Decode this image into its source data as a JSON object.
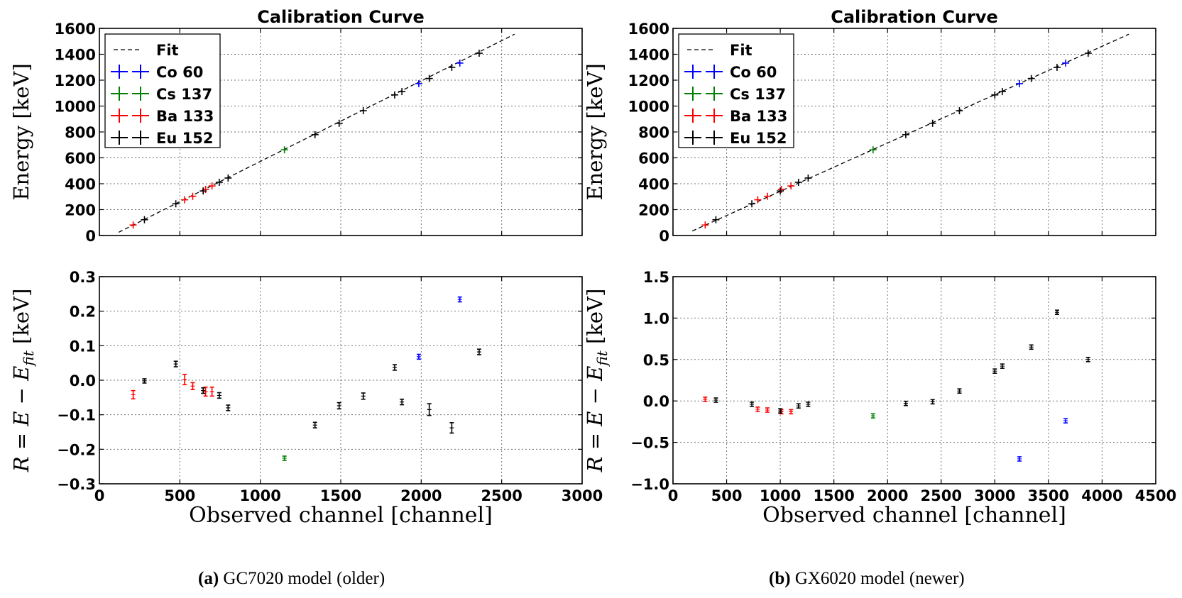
{
  "chart_data": [
    {
      "panel": "a-top",
      "type": "scatter",
      "title": "Calibration Curve",
      "xlabel": "",
      "ylabel": "Energy [keV]",
      "xlim": [
        0,
        3000
      ],
      "ylim": [
        0,
        1600
      ],
      "xticks": [],
      "yticks": [
        "0",
        "200",
        "400",
        "600",
        "800",
        "1000",
        "1200",
        "1400",
        "1600"
      ],
      "grid": true,
      "legend_position": "top-left",
      "legend": [
        "Fit",
        "Co 60",
        "Cs 137",
        "Ba 133",
        "Eu 152"
      ],
      "fit": {
        "name": "Fit",
        "x": [
          120,
          2580
        ],
        "y": [
          25,
          1555
        ]
      },
      "series": [
        {
          "name": "Co 60",
          "color": "#0000ff",
          "points": [
            [
              1985,
              1173
            ],
            [
              2240,
              1332
            ]
          ]
        },
        {
          "name": "Cs 137",
          "color": "#008000",
          "points": [
            [
              1150,
              662
            ]
          ]
        },
        {
          "name": "Ba 133",
          "color": "#ff0000",
          "points": [
            [
              210,
              81
            ],
            [
              530,
              276
            ],
            [
              580,
              303
            ],
            [
              660,
              356
            ],
            [
              700,
              383
            ]
          ]
        },
        {
          "name": "Eu 152",
          "color": "#000000",
          "points": [
            [
              280,
              122
            ],
            [
              475,
              245
            ],
            [
              645,
              344
            ],
            [
              745,
              411
            ],
            [
              800,
              444
            ],
            [
              1340,
              779
            ],
            [
              1490,
              867
            ],
            [
              1640,
              964
            ],
            [
              1835,
              1086
            ],
            [
              1880,
              1112
            ],
            [
              2050,
              1213
            ],
            [
              2190,
              1299
            ],
            [
              2360,
              1408
            ]
          ]
        }
      ]
    },
    {
      "panel": "a-bottom",
      "type": "scatter",
      "title": "",
      "xlabel": "Observed channel [channel]",
      "ylabel": "R = E − E_fit [keV]",
      "xlim": [
        0,
        3000
      ],
      "ylim": [
        -0.3,
        0.3
      ],
      "xticks": [
        "0",
        "500",
        "1000",
        "1500",
        "2000",
        "2500",
        "3000"
      ],
      "yticks": [
        "−0.3",
        "−0.2",
        "−0.1",
        "0.0",
        "0.1",
        "0.2",
        "0.3"
      ],
      "grid": true,
      "series": [
        {
          "name": "Co 60",
          "color": "#0000ff",
          "points": [
            [
              1985,
              0.068,
              0.007
            ],
            [
              2240,
              0.234,
              0.007
            ]
          ]
        },
        {
          "name": "Cs 137",
          "color": "#008000",
          "points": [
            [
              1150,
              -0.226,
              0.006
            ]
          ]
        },
        {
          "name": "Ba 133",
          "color": "#ff0000",
          "points": [
            [
              210,
              -0.042,
              0.012
            ],
            [
              530,
              0.002,
              0.015
            ],
            [
              580,
              -0.017,
              0.01
            ],
            [
              660,
              -0.033,
              0.013
            ],
            [
              700,
              -0.033,
              0.013
            ]
          ]
        },
        {
          "name": "Eu 152",
          "color": "#000000",
          "points": [
            [
              280,
              -0.002,
              0.006
            ],
            [
              475,
              0.047,
              0.008
            ],
            [
              645,
              -0.03,
              0.008
            ],
            [
              745,
              -0.044,
              0.008
            ],
            [
              800,
              -0.08,
              0.008
            ],
            [
              1340,
              -0.13,
              0.008
            ],
            [
              1490,
              -0.074,
              0.009
            ],
            [
              1640,
              -0.046,
              0.009
            ],
            [
              1835,
              0.037,
              0.008
            ],
            [
              1880,
              -0.063,
              0.008
            ],
            [
              2050,
              -0.085,
              0.017
            ],
            [
              2190,
              -0.138,
              0.015
            ],
            [
              2360,
              0.082,
              0.008
            ]
          ]
        }
      ]
    },
    {
      "panel": "b-top",
      "type": "scatter",
      "title": "Calibration Curve",
      "xlabel": "",
      "ylabel": "Energy [keV]",
      "xlim": [
        0,
        4500
      ],
      "ylim": [
        0,
        1600
      ],
      "xticks": [],
      "yticks": [
        "0",
        "200",
        "400",
        "600",
        "800",
        "1000",
        "1200",
        "1400",
        "1600"
      ],
      "grid": true,
      "legend_position": "top-left",
      "legend": [
        "Fit",
        "Co 60",
        "Cs 137",
        "Ba 133",
        "Eu 152"
      ],
      "fit": {
        "name": "Fit",
        "x": [
          180,
          4250
        ],
        "y": [
          35,
          1555
        ]
      },
      "series": [
        {
          "name": "Co 60",
          "color": "#0000ff",
          "points": [
            [
              3230,
              1173
            ],
            [
              3660,
              1332
            ]
          ]
        },
        {
          "name": "Cs 137",
          "color": "#008000",
          "points": [
            [
              1865,
              662
            ]
          ]
        },
        {
          "name": "Ba 133",
          "color": "#ff0000",
          "points": [
            [
              300,
              81
            ],
            [
              790,
              276
            ],
            [
              880,
              303
            ],
            [
              1010,
              356
            ],
            [
              1100,
              383
            ]
          ]
        },
        {
          "name": "Eu 152",
          "color": "#000000",
          "points": [
            [
              400,
              122
            ],
            [
              735,
              245
            ],
            [
              1000,
              344
            ],
            [
              1170,
              411
            ],
            [
              1260,
              444
            ],
            [
              2170,
              779
            ],
            [
              2420,
              867
            ],
            [
              2670,
              964
            ],
            [
              3000,
              1086
            ],
            [
              3070,
              1112
            ],
            [
              3340,
              1213
            ],
            [
              3580,
              1299
            ],
            [
              3870,
              1408
            ]
          ]
        }
      ]
    },
    {
      "panel": "b-bottom",
      "type": "scatter",
      "title": "",
      "xlabel": "Observed channel [channel]",
      "ylabel": "R = E − E_fit [keV]",
      "xlim": [
        0,
        4500
      ],
      "ylim": [
        -1.0,
        1.5
      ],
      "xticks": [
        "0",
        "500",
        "1000",
        "1500",
        "2000",
        "2500",
        "3000",
        "3500",
        "4000",
        "4500"
      ],
      "yticks": [
        "−1.0",
        "−0.5",
        "0.0",
        "0.5",
        "1.0",
        "1.5"
      ],
      "grid": true,
      "series": [
        {
          "name": "Co 60",
          "color": "#0000ff",
          "points": [
            [
              3230,
              -0.7,
              0.02
            ],
            [
              3660,
              -0.24,
              0.02
            ]
          ]
        },
        {
          "name": "Cs 137",
          "color": "#008000",
          "points": [
            [
              1865,
              -0.18,
              0.02
            ]
          ]
        },
        {
          "name": "Ba 133",
          "color": "#ff0000",
          "points": [
            [
              300,
              0.02,
              0.02
            ],
            [
              790,
              -0.1,
              0.02
            ],
            [
              880,
              -0.11,
              0.02
            ],
            [
              1010,
              -0.13,
              0.02
            ],
            [
              1100,
              -0.13,
              0.02
            ]
          ]
        },
        {
          "name": "Eu 152",
          "color": "#000000",
          "points": [
            [
              400,
              0.01,
              0.02
            ],
            [
              735,
              -0.04,
              0.02
            ],
            [
              1000,
              -0.12,
              0.02
            ],
            [
              1170,
              -0.06,
              0.02
            ],
            [
              1260,
              -0.04,
              0.02
            ],
            [
              2170,
              -0.03,
              0.02
            ],
            [
              2420,
              -0.01,
              0.02
            ],
            [
              2670,
              0.12,
              0.02
            ],
            [
              3000,
              0.36,
              0.02
            ],
            [
              3070,
              0.42,
              0.02
            ],
            [
              3340,
              0.65,
              0.02
            ],
            [
              3580,
              1.07,
              0.02
            ],
            [
              3870,
              0.5,
              0.02
            ]
          ]
        }
      ]
    }
  ],
  "captions": {
    "a_label": "(a)",
    "a_text": " GC7020 model (older)",
    "b_label": "(b)",
    "b_text": " GX6020 model (newer)"
  }
}
